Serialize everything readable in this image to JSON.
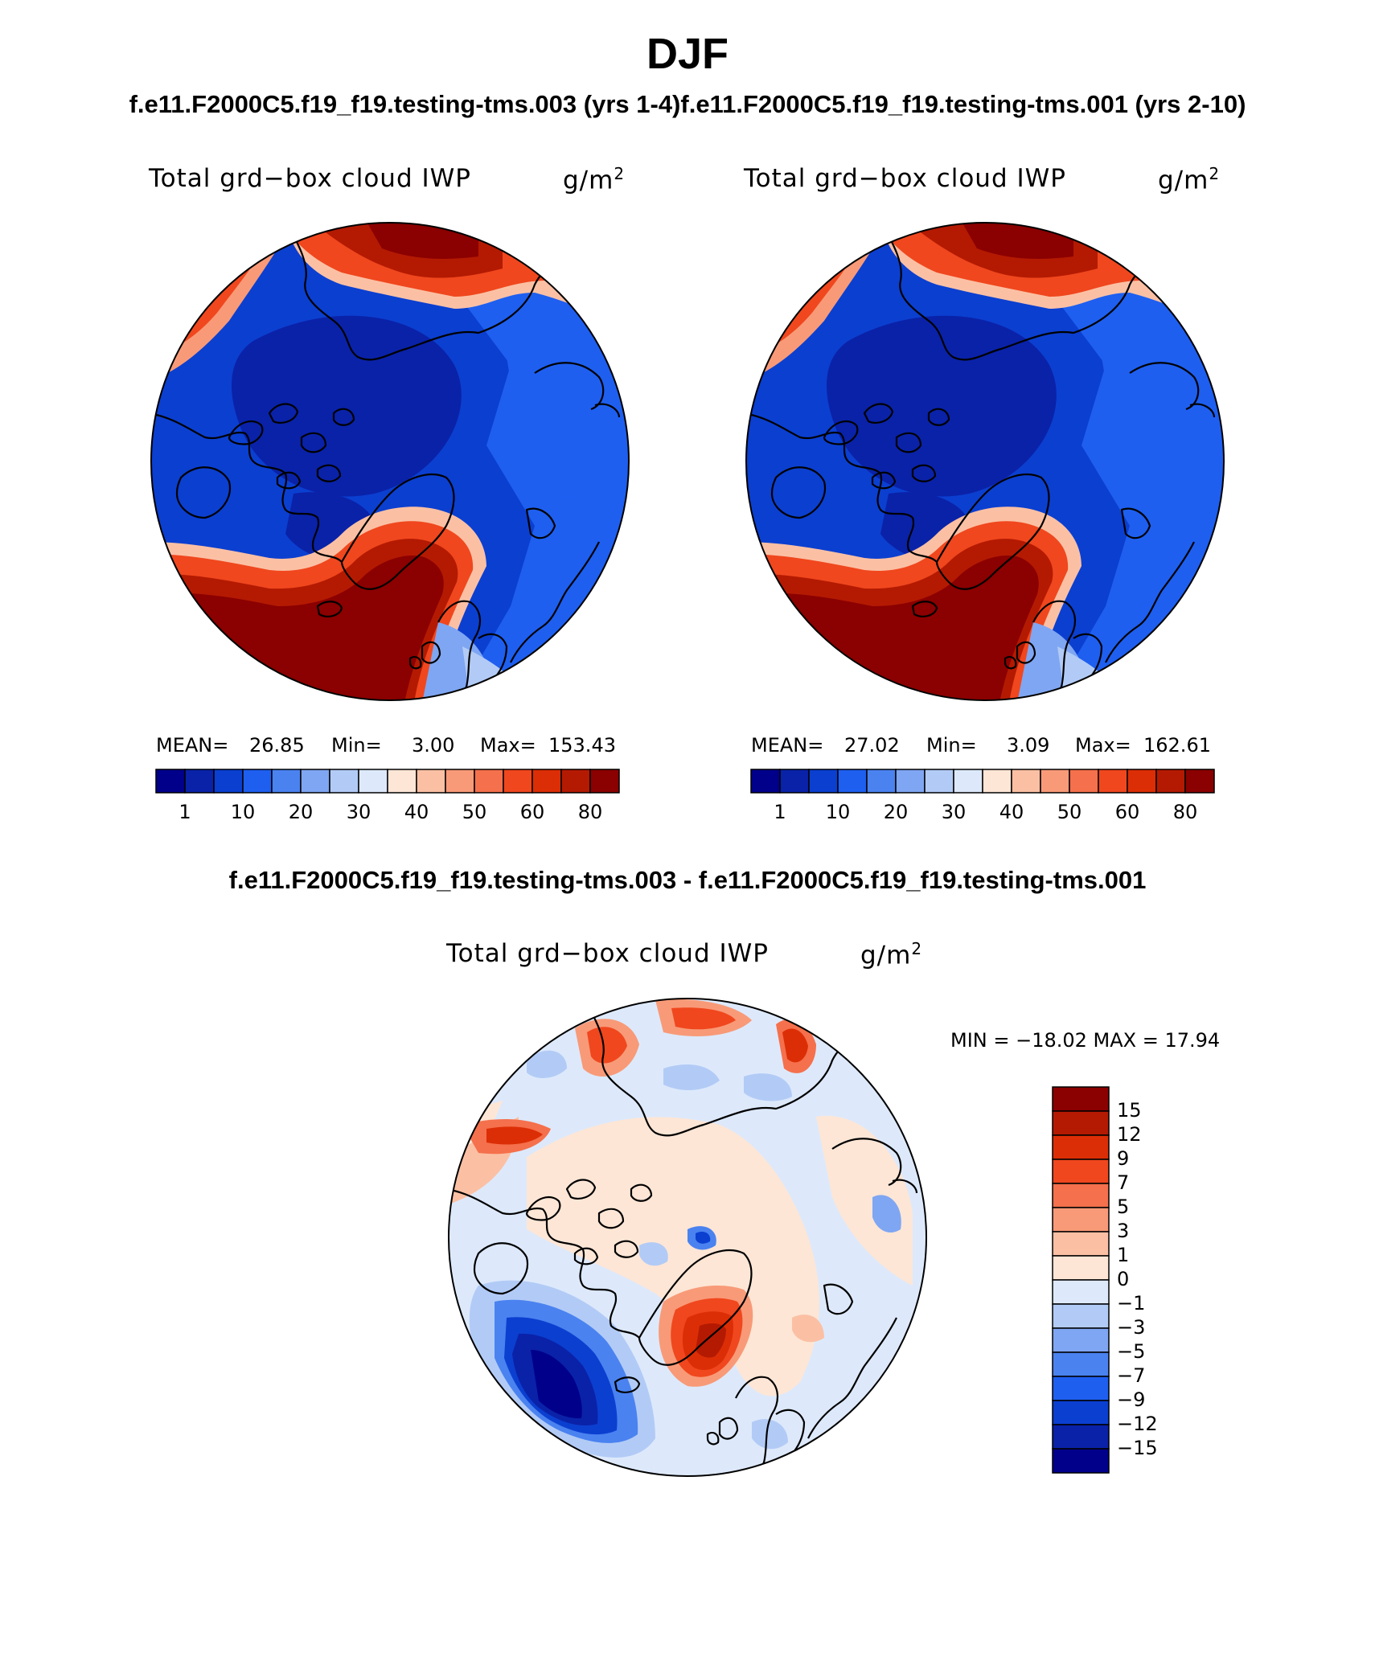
{
  "title": "DJF",
  "case_line": "f.e11.F2000C5.f19_f19.testing-tms.003 (yrs 1-4)f.e11.F2000C5.f19_f19.testing-tms.001 (yrs 2-10)",
  "diff_title": "f.e11.F2000C5.f19_f19.testing-tms.003 - f.e11.F2000C5.f19_f19.testing-tms.001",
  "panels": [
    {
      "variable": "Total grd−box cloud IWP",
      "units_base": "g/m",
      "units_exp": "2",
      "mean_label": "MEAN=",
      "mean": "26.85",
      "min_label": "Min=",
      "min": "3.00",
      "max_label": "Max=",
      "max": "153.43"
    },
    {
      "variable": "Total grd−box cloud IWP",
      "units_base": "g/m",
      "units_exp": "2",
      "mean_label": "MEAN=",
      "mean": "27.02",
      "min_label": "Min=",
      "min": "3.09",
      "max_label": "Max=",
      "max": "162.61"
    }
  ],
  "diff_panel": {
    "variable": "Total grd−box cloud IWP",
    "units_base": "g/m",
    "units_exp": "2",
    "minmax_text": "MIN = −18.02 MAX =   17.94"
  },
  "colorbar_abs": {
    "ticks": [
      "1",
      "10",
      "20",
      "30",
      "40",
      "50",
      "60",
      "80"
    ],
    "colors": [
      "#00008b",
      "#0a22a8",
      "#0b3fd0",
      "#1e5ff0",
      "#4a82f0",
      "#7fa6f2",
      "#b2cbf6",
      "#dde9fb",
      "#fde6d6",
      "#fbc0a4",
      "#f89a78",
      "#f5704c",
      "#f0471e",
      "#dc2e06",
      "#b41a02",
      "#8b0000"
    ]
  },
  "colorbar_diff": {
    "ticks": [
      "15",
      "12",
      "9",
      "7",
      "5",
      "3",
      "1",
      "0",
      "−1",
      "−3",
      "−5",
      "−7",
      "−9",
      "−12",
      "−15"
    ],
    "colors_top_to_bottom": [
      "#8b0000",
      "#b41a02",
      "#dc2e06",
      "#f0471e",
      "#f5704c",
      "#f89a78",
      "#fbc0a4",
      "#fde6d6",
      "#dde9fb",
      "#b2cbf6",
      "#7fa6f2",
      "#4a82f0",
      "#1e5ff0",
      "#0b3fd0",
      "#0a22a8",
      "#00008b"
    ]
  }
}
